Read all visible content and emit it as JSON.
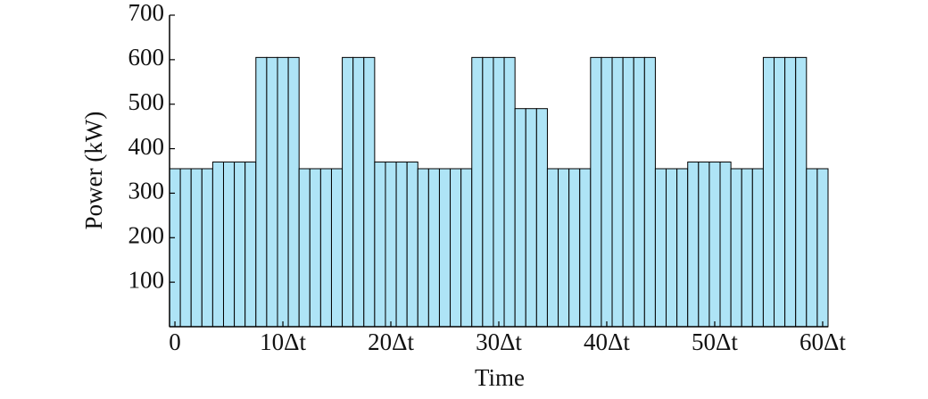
{
  "chart_data": {
    "type": "bar",
    "x_label": "Time",
    "y_label": "Power (kW)",
    "x": [
      0,
      1,
      2,
      3,
      4,
      5,
      6,
      7,
      8,
      9,
      10,
      11,
      12,
      13,
      14,
      15,
      16,
      17,
      18,
      19,
      20,
      21,
      22,
      23,
      24,
      25,
      26,
      27,
      28,
      29,
      30,
      31,
      32,
      33,
      34,
      35,
      36,
      37,
      38,
      39,
      40,
      41,
      42,
      43,
      44,
      45,
      46,
      47,
      48,
      49,
      50,
      51,
      52,
      53,
      54,
      55,
      56,
      57,
      58,
      59,
      60
    ],
    "values": [
      355,
      355,
      355,
      355,
      370,
      370,
      370,
      370,
      605,
      605,
      605,
      605,
      355,
      355,
      355,
      355,
      605,
      605,
      605,
      370,
      370,
      370,
      370,
      355,
      355,
      355,
      355,
      355,
      605,
      605,
      605,
      605,
      490,
      490,
      490,
      355,
      355,
      355,
      355,
      605,
      605,
      605,
      605,
      605,
      605,
      355,
      355,
      355,
      370,
      370,
      370,
      370,
      355,
      355,
      355,
      605,
      605,
      605,
      605,
      355,
      355
    ],
    "color": "#aee4f6",
    "xlim": [
      -0.5,
      60.5
    ],
    "xticks": [
      0,
      {
        "value": 10,
        "label": "10Δt"
      },
      {
        "value": 20,
        "label": "20Δt"
      },
      {
        "value": 30,
        "label": "30Δt"
      },
      {
        "value": 40,
        "label": "40Δt"
      },
      {
        "value": 50,
        "label": "50Δt"
      },
      {
        "value": 60,
        "label": "60Δt"
      }
    ],
    "ylim": [
      0,
      700
    ],
    "yticks": [
      100,
      200,
      300,
      400,
      500,
      600,
      700
    ]
  }
}
